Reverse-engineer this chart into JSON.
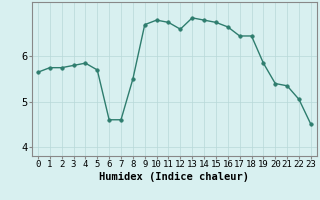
{
  "xlabel": "Humidex (Indice chaleur)",
  "ylabel": "",
  "x": [
    0,
    1,
    2,
    3,
    4,
    5,
    6,
    7,
    8,
    9,
    10,
    11,
    12,
    13,
    14,
    15,
    16,
    17,
    18,
    19,
    20,
    21,
    22,
    23
  ],
  "y": [
    5.65,
    5.75,
    5.75,
    5.8,
    5.85,
    5.7,
    4.6,
    4.6,
    5.5,
    6.7,
    6.8,
    6.75,
    6.6,
    6.85,
    6.8,
    6.75,
    6.65,
    6.45,
    6.45,
    5.85,
    5.4,
    5.35,
    5.05,
    4.5
  ],
  "line_color": "#2e7d6e",
  "marker": "o",
  "marker_size": 2.5,
  "line_width": 1.0,
  "bg_color": "#d8f0f0",
  "grid_color": "#b8d8d8",
  "xlim": [
    -0.5,
    23.5
  ],
  "ylim": [
    3.8,
    7.2
  ],
  "yticks": [
    4,
    5,
    6
  ],
  "xticks": [
    0,
    1,
    2,
    3,
    4,
    5,
    6,
    7,
    8,
    9,
    10,
    11,
    12,
    13,
    14,
    15,
    16,
    17,
    18,
    19,
    20,
    21,
    22,
    23
  ],
  "tick_fontsize": 6.5,
  "xlabel_fontsize": 7.5,
  "ytick_fontsize": 7.5
}
